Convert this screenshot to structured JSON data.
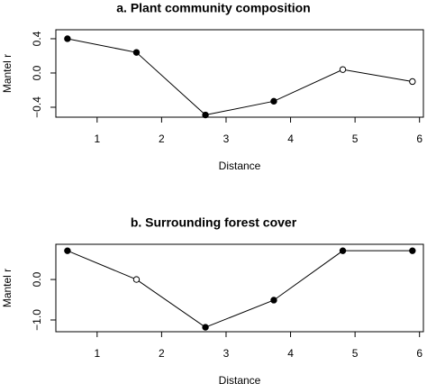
{
  "chart_data": [
    {
      "type": "line",
      "title": "a. Plant community composition",
      "x_label": "Distance",
      "y_label": "Mantel r",
      "x": [
        0.54,
        1.61,
        2.68,
        3.74,
        4.81,
        5.89
      ],
      "series": [
        {
          "color": "#000000",
          "values": [
            0.4,
            0.24,
            -0.49,
            -0.33,
            0.04,
            -0.1
          ],
          "filled": [
            true,
            true,
            true,
            true,
            false,
            false
          ]
        }
      ],
      "xlim": [
        0.36,
        6.06
      ],
      "ylim": [
        -0.516,
        0.505
      ],
      "xticks": [
        1,
        2,
        3,
        4,
        5,
        6
      ],
      "yticks": [
        {
          "value": -0.4,
          "label": "−0.4"
        },
        {
          "value": 0,
          "label": "0.0"
        },
        0.4
      ]
    },
    {
      "type": "line",
      "title": "b. Surrounding forest cover",
      "x_label": "Distance",
      "y_label": "Mantel r",
      "x": [
        0.54,
        1.61,
        2.68,
        3.74,
        4.81,
        5.89
      ],
      "series": [
        {
          "color": "#000000",
          "values": [
            0.71,
            0.0,
            -1.18,
            -0.51,
            0.71,
            0.71
          ],
          "filled": [
            true,
            false,
            true,
            true,
            true,
            true
          ]
        }
      ],
      "xlim": [
        0.36,
        6.06
      ],
      "ylim": [
        -1.29,
        0.87
      ],
      "xticks": [
        1,
        2,
        3,
        4,
        5,
        6
      ],
      "yticks": [
        {
          "value": -1,
          "label": "−1.0"
        },
        {
          "value": 0,
          "label": "0.0"
        }
      ]
    }
  ]
}
